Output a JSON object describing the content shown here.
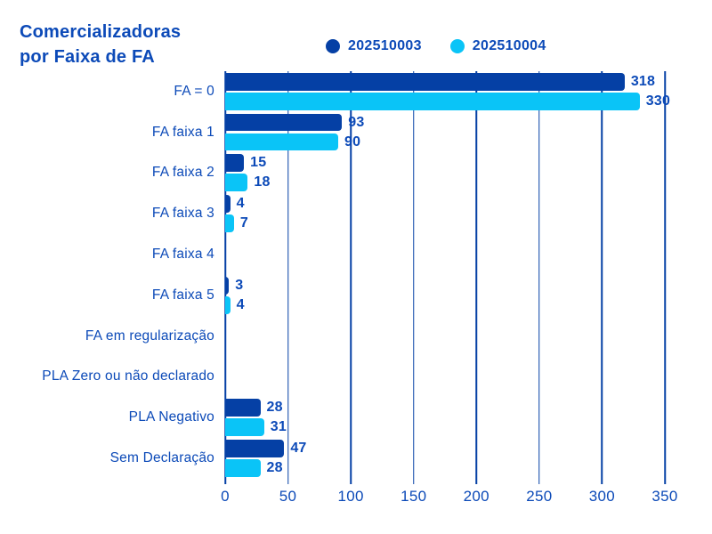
{
  "title": {
    "line1": "Comercializadoras",
    "line2": "por Faixa de FA"
  },
  "legend": [
    {
      "label": "202510003",
      "color": "#0540A5"
    },
    {
      "label": "202510004",
      "color": "#0AC4F7"
    }
  ],
  "colors": {
    "series1": "#0540A5",
    "series2": "#0AC4F7",
    "text": "#0C4AB8",
    "grid": "#0540A5",
    "background": "#FFFFFF"
  },
  "chart_data": {
    "type": "bar",
    "orientation": "horizontal",
    "title": "Comercializadoras por Faixa de FA",
    "xlabel": "",
    "ylabel": "",
    "xlim": [
      0,
      350
    ],
    "xticks": [
      0,
      50,
      100,
      150,
      200,
      250,
      300,
      350
    ],
    "grid": true,
    "legend_position": "top",
    "value_labels": true,
    "categories": [
      "FA = 0",
      "FA faixa 1",
      "FA faixa 2",
      "FA faixa 3",
      "FA faixa 4",
      "FA faixa 5",
      "FA em regularização",
      "PLA Zero ou não declarado",
      "PLA Negativo",
      "Sem Declaração"
    ],
    "series": [
      {
        "name": "202510003",
        "color": "#0540A5",
        "values": [
          318,
          93,
          15,
          4,
          0,
          3,
          0,
          0,
          28,
          47
        ]
      },
      {
        "name": "202510004",
        "color": "#0AC4F7",
        "values": [
          330,
          90,
          18,
          7,
          0,
          4,
          0,
          0,
          31,
          28
        ]
      }
    ]
  }
}
